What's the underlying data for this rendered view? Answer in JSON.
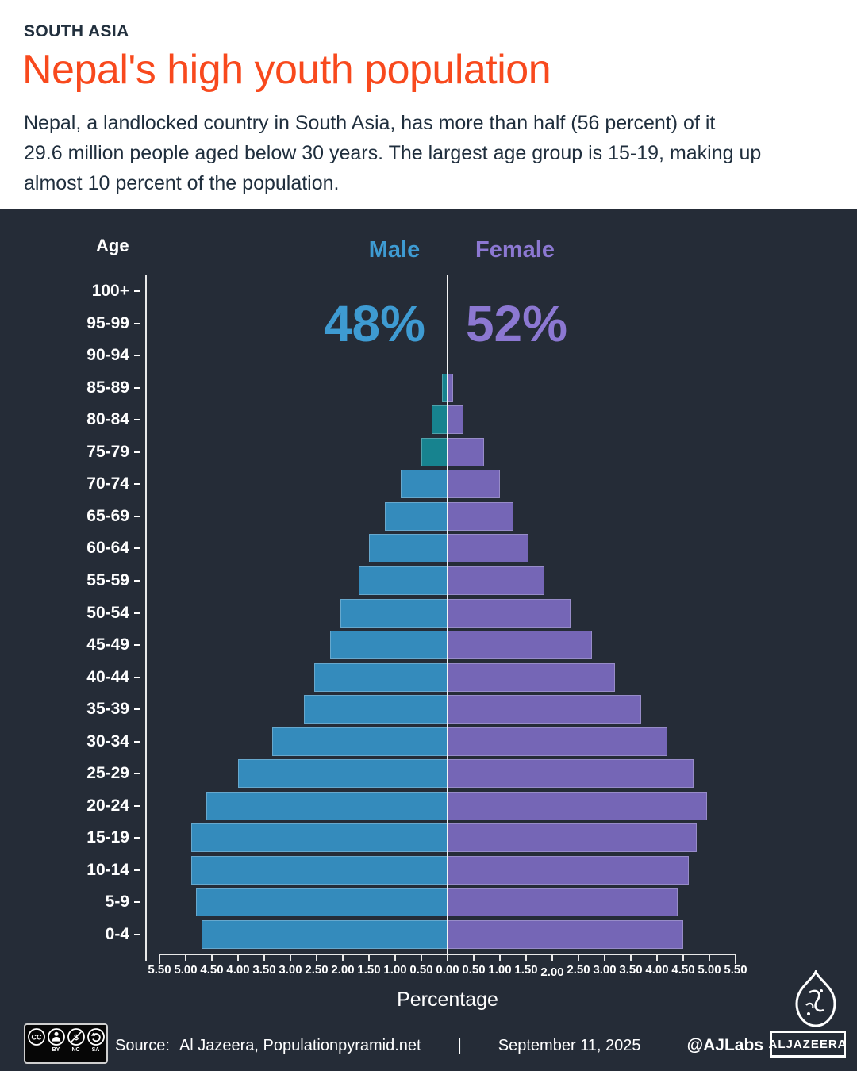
{
  "header": {
    "kicker": "SOUTH ASIA",
    "title": "Nepal's high youth population",
    "subtitle_lines": [
      "Nepal, a landlocked country in South Asia, has more than half (56 percent) of it",
      "29.6 million people aged below 30 years. The largest age group is 15-19, making up",
      "almost 10 percent of the population."
    ]
  },
  "chart": {
    "age_axis_label": "Age",
    "male_label": "Male",
    "female_label": "Female",
    "male_share": "48%",
    "female_share": "52%",
    "x_axis_label": "Percentage"
  },
  "chart_data": {
    "type": "bar",
    "subtype": "population_pyramid",
    "categories": [
      "100+",
      "95-99",
      "90-94",
      "85-89",
      "80-84",
      "75-79",
      "70-74",
      "65-69",
      "60-64",
      "55-59",
      "50-54",
      "45-49",
      "40-44",
      "35-39",
      "30-34",
      "25-29",
      "20-24",
      "15-19",
      "10-14",
      "5-9",
      "0-4"
    ],
    "series": [
      {
        "name": "Male",
        "side": "left",
        "share_label": "48%",
        "color": "#348BBC",
        "older_color": "#17838F",
        "older_color_ages": [
          "85-89",
          "80-84",
          "75-79"
        ],
        "values": [
          0,
          0,
          0,
          0.1,
          0.3,
          0.5,
          0.9,
          1.2,
          1.5,
          1.7,
          2.05,
          2.25,
          2.55,
          2.75,
          3.35,
          4.0,
          4.6,
          4.9,
          4.9,
          4.8,
          4.7
        ]
      },
      {
        "name": "Female",
        "side": "right",
        "share_label": "52%",
        "color": "#7566B6",
        "values": [
          0,
          0,
          0,
          0.1,
          0.3,
          0.7,
          1.0,
          1.25,
          1.55,
          1.85,
          2.35,
          2.75,
          3.2,
          3.7,
          4.2,
          4.7,
          4.95,
          4.75,
          4.6,
          4.4,
          4.5
        ]
      }
    ],
    "xlabel": "Percentage",
    "ylabel": "Age",
    "xlim": [
      -5.5,
      5.5
    ],
    "tick_step": 0.5,
    "x_tick_labels": [
      "5.50",
      "5.00",
      "4.50",
      "4.00",
      "3.50",
      "3.00",
      "2.50",
      "2.00",
      "1.50",
      "1.00",
      "0.50",
      "0.00",
      "0.50",
      "1.00",
      "1.50",
      "2.00",
      "2.50",
      "3.00",
      "3.50",
      "4.00",
      "4.50",
      "5.00",
      "5.50"
    ],
    "grid": false,
    "background": "#252C37"
  },
  "footer": {
    "cc_labels": [
      "BY",
      "NC",
      "SA"
    ],
    "source_label": "Source:",
    "source_text": "Al Jazeera, Populationpyramid.net",
    "separator": "|",
    "date": "September 11, 2025",
    "credit": "@AJLabs",
    "wordmark": "ALJAZEERA"
  }
}
